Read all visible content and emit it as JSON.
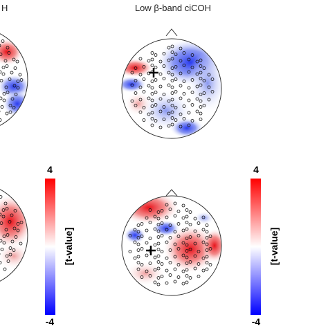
{
  "panels": {
    "top_left_title": "H",
    "top_right_title": "Low β-band ciCOH"
  },
  "colorbars": [
    {
      "max_label": "4",
      "min_label": "-4",
      "label": "[t-value]"
    },
    {
      "max_label": "4",
      "min_label": "-4",
      "label": "[t-value]"
    }
  ]
}
